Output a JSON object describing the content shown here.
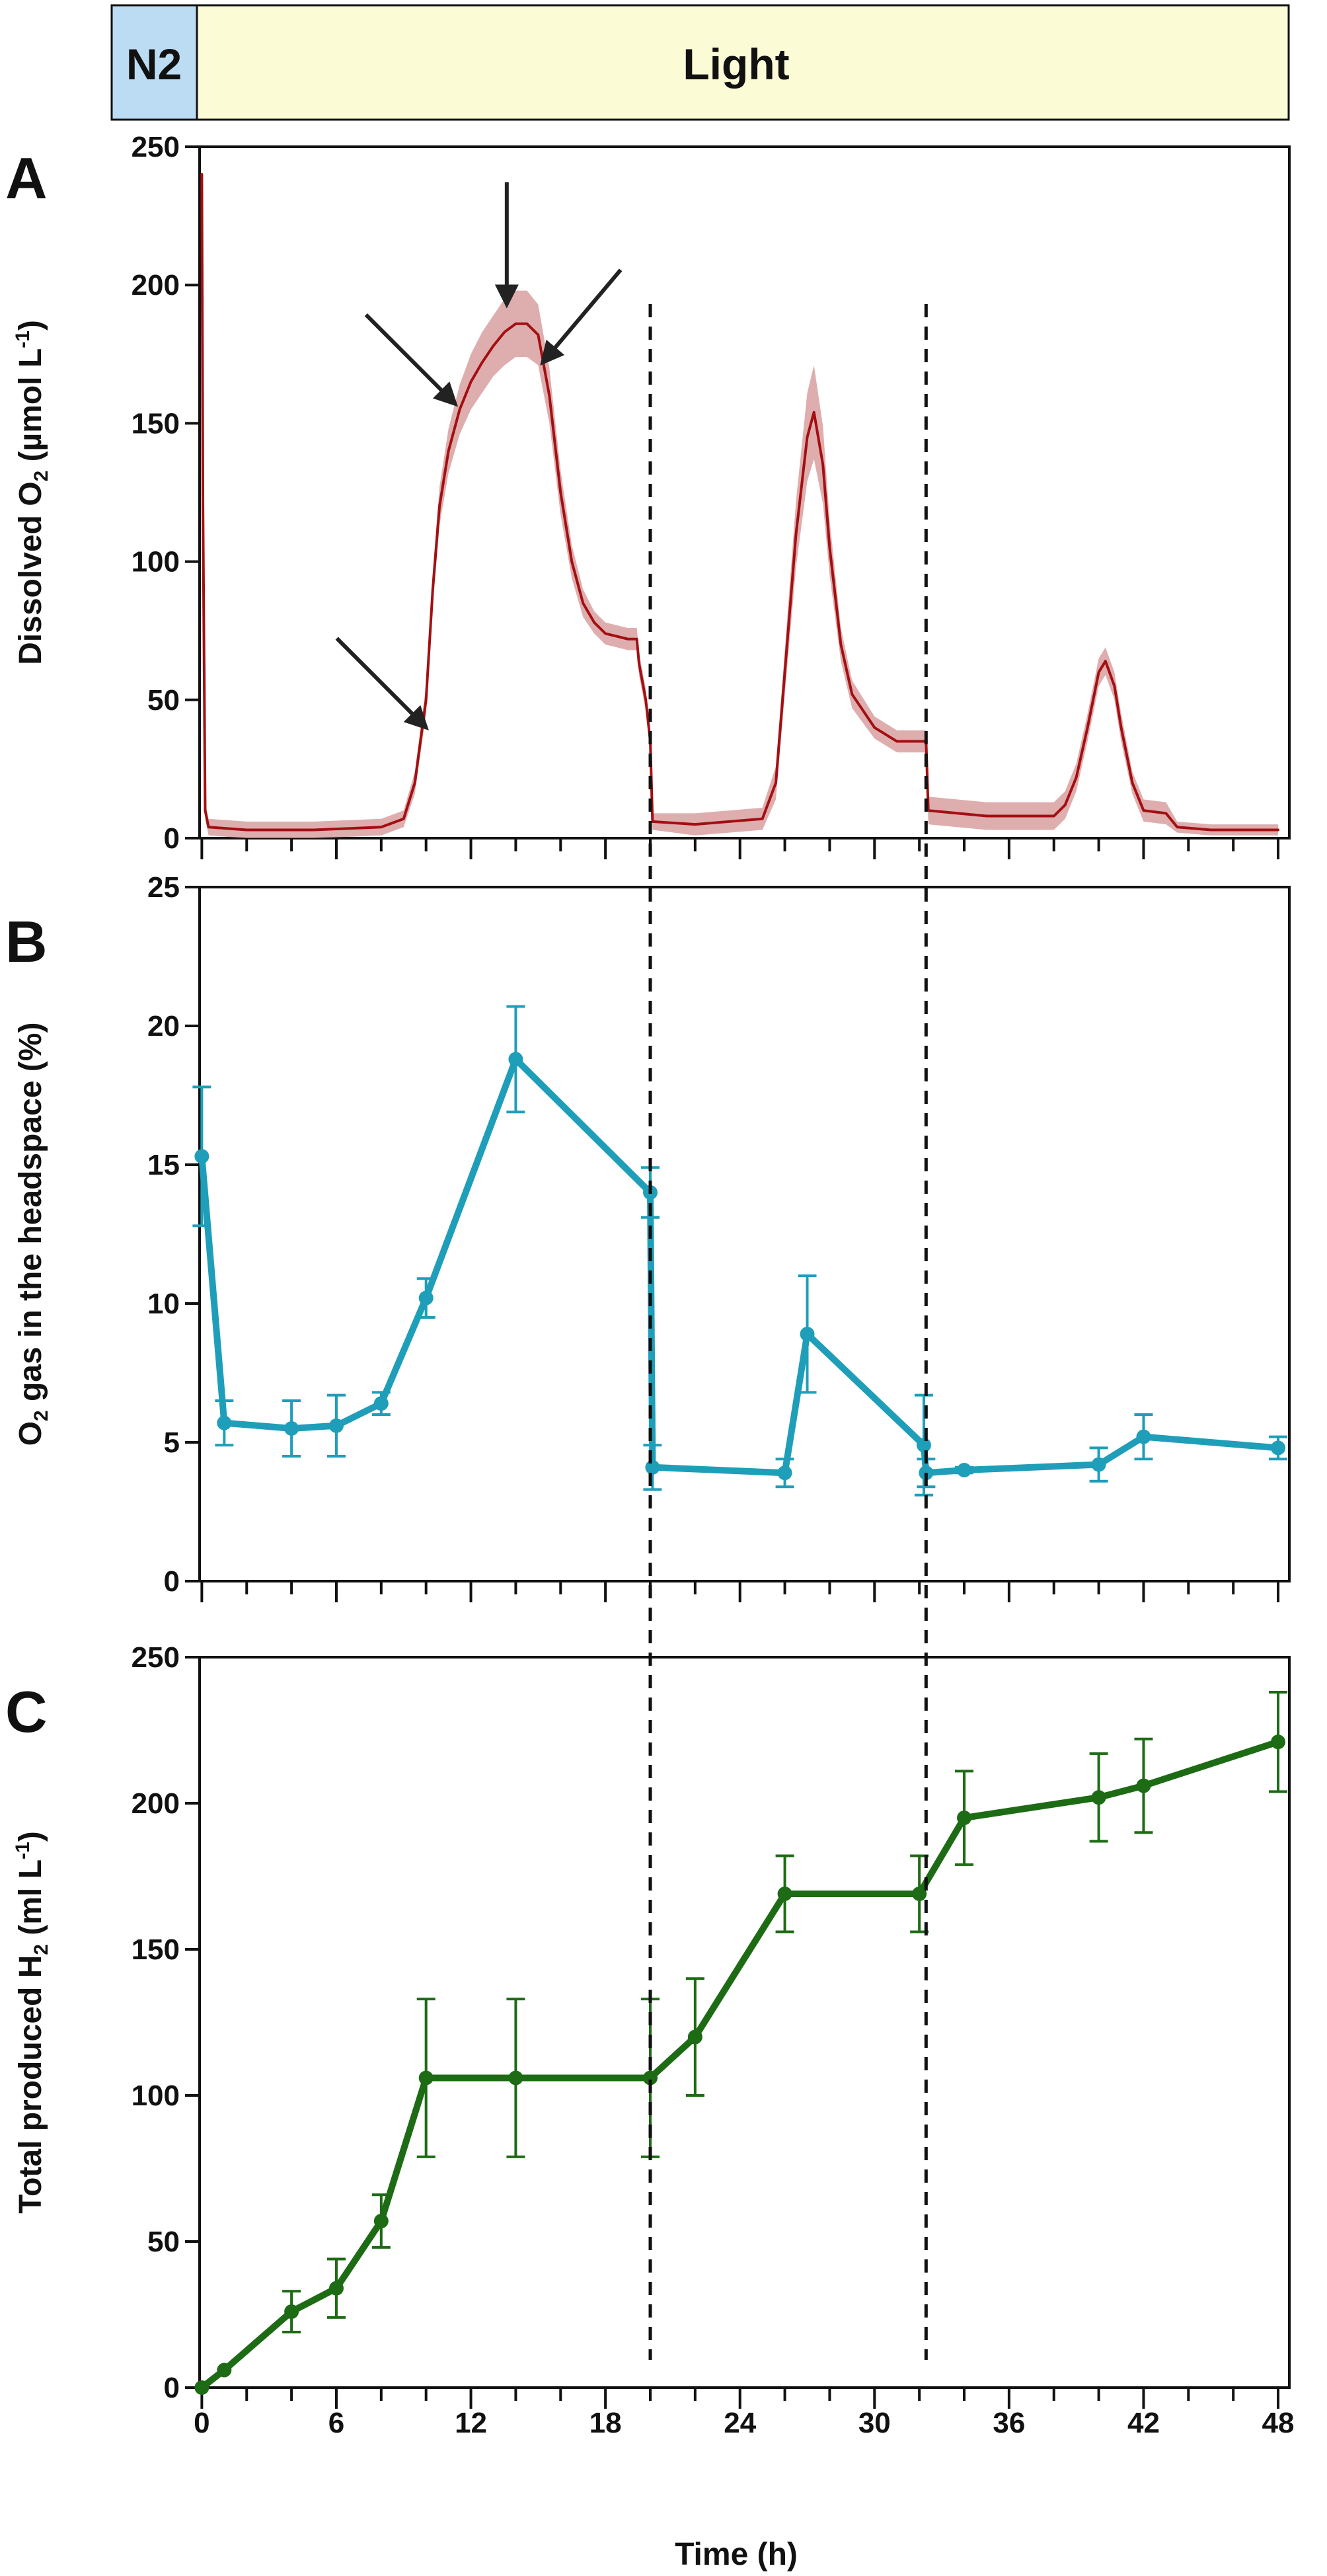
{
  "top_bar": {
    "segments": [
      {
        "label": "N2",
        "x_start": -2,
        "x_end": 0,
        "color": "#bcdcf3"
      },
      {
        "label": "Light",
        "x_start": 0,
        "x_end": 48,
        "color": "#fbfbd6"
      }
    ]
  },
  "colors": {
    "panel_a_line": "#a30f12",
    "panel_a_band": "#d8a0a0",
    "panel_b_line": "#1f9eb9",
    "panel_c_line": "#1d6b14",
    "axis": "#111111"
  },
  "x_axis": {
    "label": "Time (h)",
    "range": [
      -0.1,
      48.5
    ],
    "tick_labels": [
      "0",
      "6",
      "12",
      "18",
      "24",
      "30",
      "36",
      "42",
      "48"
    ],
    "tick_values": [
      0,
      6,
      12,
      18,
      24,
      30,
      36,
      42,
      48
    ]
  },
  "vertical_markers": {
    "x_values": [
      20,
      32.3
    ],
    "style": "dashed"
  },
  "chart_data": [
    {
      "panel": "A",
      "type": "line",
      "ylabel": "Dissolved O₂ (µmol L⁻¹)",
      "ylabel_parts": [
        "Dissolved O",
        "2",
        " (µmol L",
        "-1",
        ")"
      ],
      "ylim": [
        0,
        250
      ],
      "y_ticks": [
        "0",
        "50",
        "100",
        "150",
        "200",
        "250"
      ],
      "band": "error shading",
      "x": [
        0,
        0.05,
        0.15,
        0.3,
        2,
        5,
        8,
        9,
        9.5,
        10,
        10.3,
        10.6,
        11,
        11.5,
        12,
        12.5,
        13,
        13.5,
        14,
        14.5,
        15,
        15.5,
        16,
        16.5,
        17,
        17.5,
        18,
        18.5,
        19,
        19.4,
        19.5,
        19.8,
        20,
        20.1,
        22,
        25,
        25.6,
        26,
        26.5,
        27,
        27.3,
        27.7,
        28,
        28.5,
        29,
        30,
        31,
        32.3,
        32.4,
        35,
        38,
        38.5,
        39,
        39.5,
        40,
        40.3,
        40.7,
        41,
        41.5,
        42,
        43,
        43.5,
        45,
        48
      ],
      "y": [
        240,
        120,
        10,
        4,
        3,
        3,
        4,
        7,
        20,
        50,
        90,
        120,
        140,
        155,
        165,
        172,
        178,
        183,
        186,
        186,
        182,
        160,
        125,
        100,
        85,
        78,
        74,
        73,
        72,
        72,
        63,
        50,
        35,
        6,
        5,
        7,
        20,
        60,
        110,
        145,
        154,
        135,
        105,
        70,
        52,
        40,
        35,
        35,
        10,
        8,
        8,
        12,
        22,
        40,
        60,
        64,
        55,
        40,
        20,
        10,
        9,
        4,
        3,
        3
      ],
      "band_half_width": [
        4,
        4,
        3,
        3,
        3,
        3,
        3,
        3,
        4,
        5,
        6,
        7,
        8,
        9,
        10,
        11,
        11,
        12,
        12,
        12,
        11,
        10,
        8,
        6,
        5,
        4,
        4,
        4,
        4,
        4,
        4,
        4,
        3,
        3,
        4,
        4,
        6,
        8,
        12,
        16,
        17,
        14,
        10,
        6,
        5,
        4,
        4,
        4,
        5,
        5,
        5,
        5,
        5,
        5,
        5,
        5,
        5,
        5,
        4,
        4,
        4,
        2,
        2,
        2
      ],
      "arrows": [
        {
          "target_x": 10,
          "target_y": 40
        },
        {
          "target_x": 11.3,
          "target_y": 157
        },
        {
          "target_x": 13.6,
          "target_y": 193
        },
        {
          "target_x": 15.2,
          "target_y": 172
        }
      ]
    },
    {
      "panel": "B",
      "type": "line",
      "ylabel": "O₂ gas in the headspace (%)",
      "ylabel_parts": [
        "O",
        "2",
        " gas in the headspace (%)",
        "",
        ""
      ],
      "ylim": [
        0,
        25
      ],
      "y_ticks": [
        "0",
        "5",
        "10",
        "15",
        "20",
        "25"
      ],
      "x": [
        0,
        1,
        4,
        6,
        8,
        10,
        14,
        20,
        20.1,
        26,
        27,
        32.2,
        32.3,
        34,
        40,
        42,
        48
      ],
      "y": [
        15.3,
        5.7,
        5.5,
        5.6,
        6.4,
        10.2,
        18.8,
        14.0,
        4.1,
        3.9,
        8.9,
        4.9,
        3.9,
        4.0,
        4.2,
        5.2,
        4.8
      ],
      "err": [
        2.5,
        0.8,
        1.0,
        1.1,
        0.4,
        0.7,
        1.9,
        0.9,
        0.8,
        0.5,
        2.1,
        1.8,
        0.5,
        0.1,
        0.6,
        0.8,
        0.4
      ]
    },
    {
      "panel": "C",
      "type": "line",
      "ylabel": "Total produced H₂ (ml L⁻¹)",
      "ylabel_parts": [
        "Total produced H",
        "2",
        " (ml L",
        "-1",
        ")"
      ],
      "ylim": [
        0,
        250
      ],
      "y_ticks": [
        "0",
        "50",
        "100",
        "150",
        "200",
        "250"
      ],
      "x": [
        0,
        1,
        4,
        6,
        8,
        10,
        14,
        20,
        22,
        26,
        32,
        34,
        40,
        42,
        48
      ],
      "y": [
        0,
        6,
        26,
        34,
        57,
        106,
        106,
        106,
        120,
        169,
        169,
        195,
        202,
        206,
        221
      ],
      "err": [
        0,
        0,
        7,
        10,
        9,
        27,
        27,
        27,
        20,
        13,
        13,
        16,
        15,
        16,
        17
      ]
    }
  ]
}
